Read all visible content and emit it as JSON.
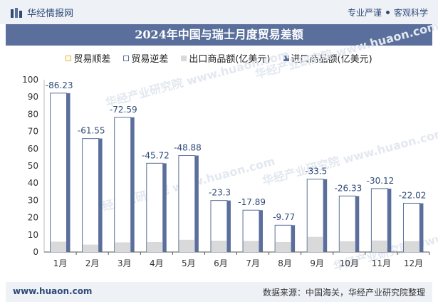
{
  "header": {
    "brand": "华经情报网",
    "slogan_1": "专业严谨",
    "slogan_2": "客观科学"
  },
  "title": "2024年中国与瑞士月度贸易差额",
  "footer": {
    "url": "www.huaon.com",
    "source": "数据来源：中国海关，华经产业研究院整理"
  },
  "watermark": "华经产业研究院 www.huaon.com",
  "colors": {
    "import": "#5a6f9c",
    "export": "#d9d9d9",
    "surplus": "#f5d36b",
    "deficit_border": "#5a6f9c",
    "label": "#2f4a78",
    "header_bg": "#eef2f7"
  },
  "chart_data": {
    "type": "bar",
    "categories": [
      "1月",
      "2月",
      "3月",
      "4月",
      "5月",
      "6月",
      "7月",
      "8月",
      "9月",
      "10月",
      "11月",
      "12月"
    ],
    "series": [
      {
        "name": "贸易顺差",
        "values": [
          0,
          0,
          0,
          0,
          0,
          0,
          0,
          0,
          0,
          0,
          0,
          0
        ]
      },
      {
        "name": "贸易逆差",
        "values": [
          -86.23,
          -61.55,
          -72.59,
          -45.72,
          -48.88,
          -23.3,
          -17.89,
          -9.77,
          -33.5,
          -26.33,
          -30.12,
          -22.02
        ]
      },
      {
        "name": "出口商品额(亿美元)",
        "values": [
          6.0,
          4.3,
          5.6,
          5.8,
          7.1,
          6.6,
          6.4,
          5.8,
          8.8,
          6.2,
          6.7,
          6.3
        ]
      },
      {
        "name": "进口商品额(亿美元)",
        "values": [
          92.2,
          65.9,
          78.2,
          51.5,
          56.0,
          29.9,
          24.3,
          15.6,
          42.3,
          32.5,
          36.8,
          28.3
        ]
      }
    ],
    "ylim": [
      0,
      100
    ],
    "yticks": [
      0,
      10,
      20,
      30,
      40,
      50,
      60,
      70,
      80,
      90,
      100
    ],
    "legend": "top",
    "grid": false
  }
}
